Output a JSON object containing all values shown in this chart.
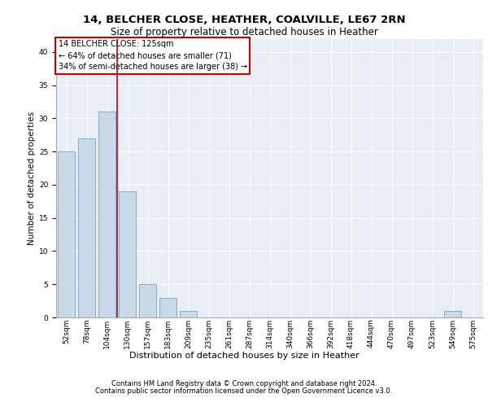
{
  "title1": "14, BELCHER CLOSE, HEATHER, COALVILLE, LE67 2RN",
  "title2": "Size of property relative to detached houses in Heather",
  "xlabel": "Distribution of detached houses by size in Heather",
  "ylabel": "Number of detached properties",
  "categories": [
    "52sqm",
    "78sqm",
    "104sqm",
    "130sqm",
    "157sqm",
    "183sqm",
    "209sqm",
    "235sqm",
    "261sqm",
    "287sqm",
    "314sqm",
    "340sqm",
    "366sqm",
    "392sqm",
    "418sqm",
    "444sqm",
    "470sqm",
    "497sqm",
    "523sqm",
    "549sqm",
    "575sqm"
  ],
  "values": [
    25,
    27,
    31,
    19,
    5,
    3,
    1,
    0,
    0,
    0,
    0,
    0,
    0,
    0,
    0,
    0,
    0,
    0,
    0,
    1,
    0
  ],
  "bar_color": "#c9d9e8",
  "bar_edge_color": "#7ba3c8",
  "annotation_box_text": "14 BELCHER CLOSE: 125sqm\n← 64% of detached houses are smaller (71)\n34% of semi-detached houses are larger (38) →",
  "annotation_box_color": "#ffffff",
  "annotation_box_edge_color": "#cc0000",
  "property_line_color": "#cc0000",
  "footer1": "Contains HM Land Registry data © Crown copyright and database right 2024.",
  "footer2": "Contains public sector information licensed under the Open Government Licence v3.0.",
  "ylim": [
    0,
    42
  ],
  "yticks": [
    0,
    5,
    10,
    15,
    20,
    25,
    30,
    35,
    40
  ],
  "bg_color": "#e8eef6",
  "grid_color": "#ffffff",
  "title1_fontsize": 9.5,
  "title2_fontsize": 8.5,
  "ylabel_fontsize": 7.5,
  "xlabel_fontsize": 8,
  "tick_fontsize": 6.5,
  "footer_fontsize": 6,
  "annot_fontsize": 7
}
